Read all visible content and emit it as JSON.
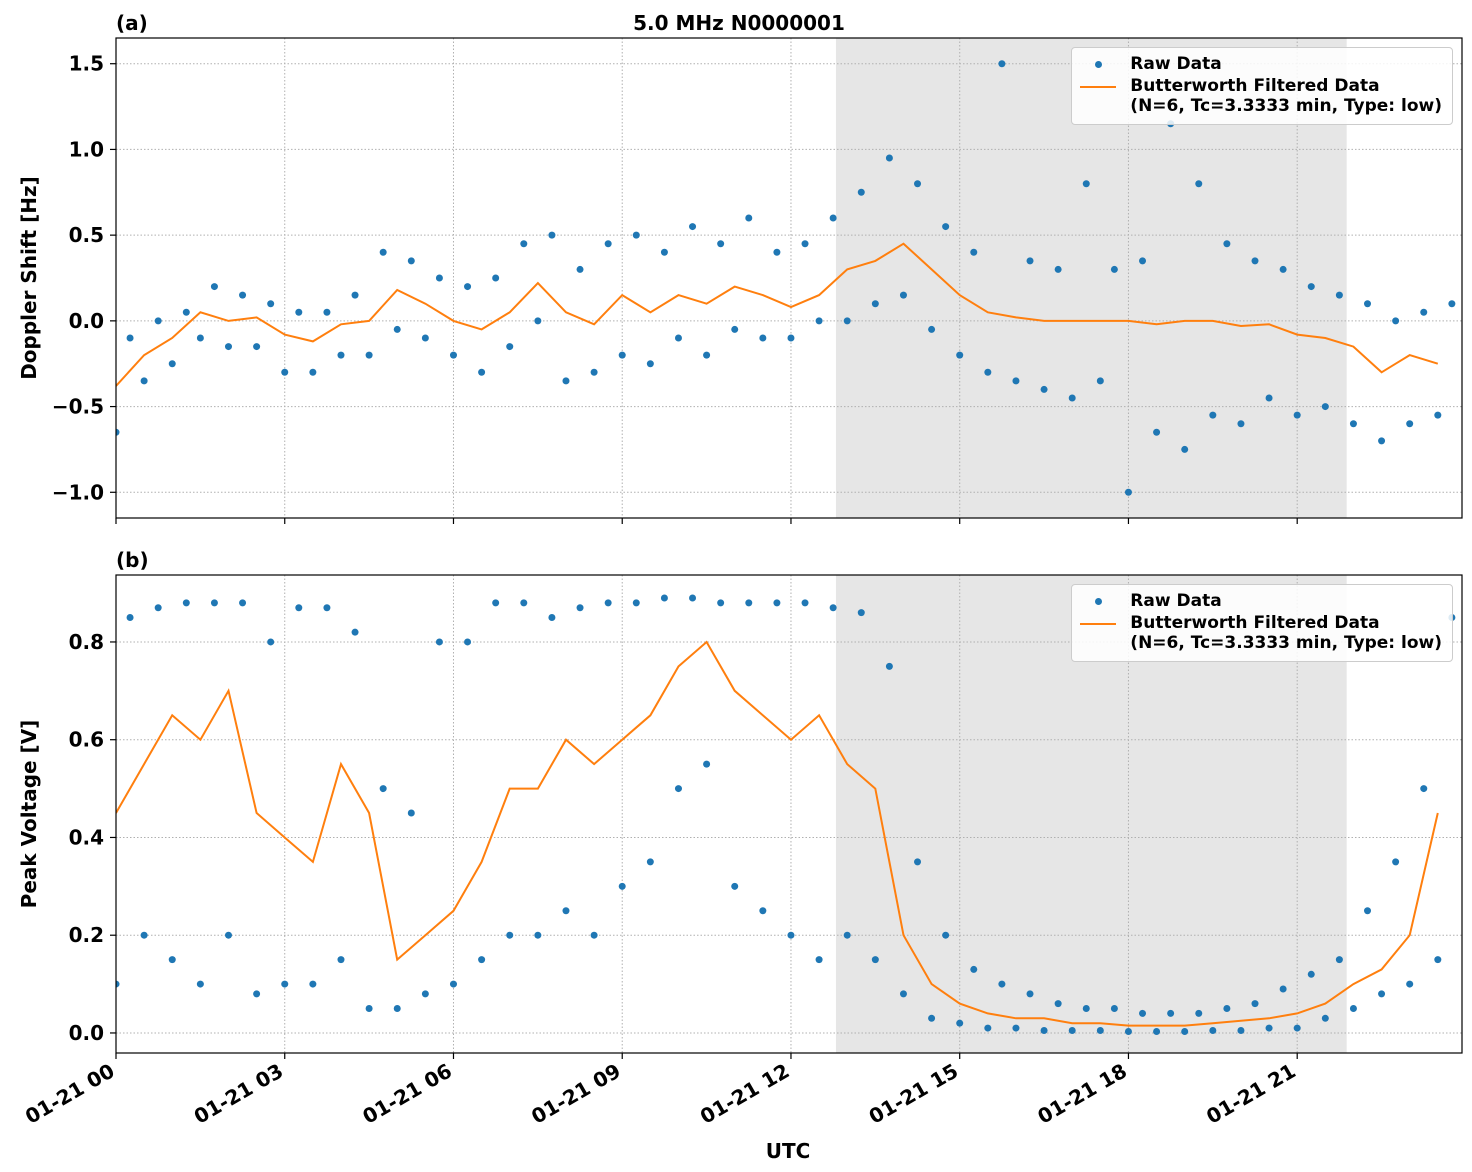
{
  "chart_data": [
    {
      "type": "line",
      "title": "5.0 MHz N0000001",
      "panel_label": "(a)",
      "ylabel": "Doppler Shift [Hz]",
      "xlim": [
        0,
        23.93
      ],
      "ylim": [
        -1.15,
        1.65
      ],
      "xticks": [
        0,
        3,
        6,
        9,
        12,
        15,
        18,
        21
      ],
      "xtick_labels_shown": false,
      "yticks": [
        {
          "value": -1.0,
          "label": "−1.0"
        },
        {
          "value": -0.5,
          "label": "−0.5"
        },
        {
          "value": 0.0,
          "label": "0.0"
        },
        {
          "value": 0.5,
          "label": "0.5"
        },
        {
          "value": 1.0,
          "label": "1.0"
        },
        {
          "value": 1.5,
          "label": "1.5"
        }
      ],
      "grid": true,
      "legend": "upper right",
      "shaded_span": [
        12.8,
        21.88
      ],
      "shade_color": "#e6e6e6",
      "series": [
        {
          "name": "Raw Data",
          "color": "#1f77b4",
          "style": "markers",
          "x": [
            0,
            0.25,
            0.5,
            0.75,
            1,
            1.25,
            1.5,
            1.75,
            2,
            2.25,
            2.5,
            2.75,
            3,
            3.25,
            3.5,
            3.75,
            4,
            4.25,
            4.5,
            4.75,
            5,
            5.25,
            5.5,
            5.75,
            6,
            6.25,
            6.5,
            6.75,
            7,
            7.25,
            7.5,
            7.75,
            8,
            8.25,
            8.5,
            8.75,
            9,
            9.25,
            9.5,
            9.75,
            10,
            10.25,
            10.5,
            10.75,
            11,
            11.25,
            11.5,
            11.75,
            12,
            12.25,
            12.5,
            12.75,
            13,
            13.25,
            13.5,
            13.75,
            14,
            14.25,
            14.5,
            14.75,
            15,
            15.25,
            15.5,
            15.75,
            16,
            16.25,
            16.5,
            16.75,
            17,
            17.25,
            17.5,
            17.75,
            18,
            18.25,
            18.5,
            18.75,
            19,
            19.25,
            19.5,
            19.75,
            20,
            20.25,
            20.5,
            20.75,
            21,
            21.25,
            21.5,
            21.75,
            22,
            22.25,
            22.5,
            22.75,
            23,
            23.25,
            23.5,
            23.75
          ],
          "values": [
            -0.65,
            -0.1,
            -0.35,
            0.0,
            -0.25,
            0.05,
            -0.1,
            0.2,
            -0.15,
            0.15,
            -0.15,
            0.1,
            -0.3,
            0.05,
            -0.3,
            0.05,
            -0.2,
            0.15,
            -0.2,
            0.4,
            -0.05,
            0.35,
            -0.1,
            0.25,
            -0.2,
            0.2,
            -0.3,
            0.25,
            -0.15,
            0.45,
            0.0,
            0.5,
            -0.35,
            0.3,
            -0.3,
            0.45,
            -0.2,
            0.5,
            -0.25,
            0.4,
            -0.1,
            0.55,
            -0.2,
            0.45,
            -0.05,
            0.6,
            -0.1,
            0.4,
            -0.1,
            0.45,
            0.0,
            0.6,
            0.0,
            0.75,
            0.1,
            0.95,
            0.15,
            0.8,
            -0.05,
            0.55,
            -0.2,
            0.4,
            -0.3,
            1.5,
            -0.35,
            0.35,
            -0.4,
            0.3,
            -0.45,
            0.8,
            -0.35,
            0.3,
            -1.0,
            0.35,
            -0.65,
            1.15,
            -0.75,
            0.8,
            -0.55,
            0.45,
            -0.6,
            0.35,
            -0.45,
            0.3,
            -0.55,
            0.2,
            -0.5,
            0.15,
            -0.6,
            0.1,
            -0.7,
            0.0,
            -0.6,
            0.05,
            -0.55,
            0.1
          ]
        },
        {
          "name": "Butterworth Filtered Data\n(N=6, Tc=3.3333 min, Type: low)",
          "color": "#ff7f0e",
          "style": "line",
          "x": [
            0,
            0.5,
            1,
            1.5,
            2,
            2.5,
            3,
            3.5,
            4,
            4.5,
            5,
            5.5,
            6,
            6.5,
            7,
            7.5,
            8,
            8.5,
            9,
            9.5,
            10,
            10.5,
            11,
            11.5,
            12,
            12.5,
            13,
            13.5,
            14,
            14.5,
            15,
            15.5,
            16,
            16.5,
            17,
            17.5,
            18,
            18.5,
            19,
            19.5,
            20,
            20.5,
            21,
            21.5,
            22,
            22.5,
            23,
            23.5
          ],
          "values": [
            -0.38,
            -0.2,
            -0.1,
            0.05,
            0.0,
            0.02,
            -0.08,
            -0.12,
            -0.02,
            0.0,
            0.18,
            0.1,
            0.0,
            -0.05,
            0.05,
            0.22,
            0.05,
            -0.02,
            0.15,
            0.05,
            0.15,
            0.1,
            0.2,
            0.15,
            0.08,
            0.15,
            0.3,
            0.35,
            0.45,
            0.3,
            0.15,
            0.05,
            0.02,
            0.0,
            0.0,
            0.0,
            0.0,
            -0.02,
            0.0,
            0.0,
            -0.03,
            -0.02,
            -0.08,
            -0.1,
            -0.15,
            -0.3,
            -0.2,
            -0.25
          ]
        }
      ]
    },
    {
      "type": "line",
      "panel_label": "(b)",
      "ylabel": "Peak Voltage [V]",
      "xlabel": "UTC",
      "xlim": [
        0,
        23.93
      ],
      "ylim": [
        -0.041,
        0.937
      ],
      "xticks": [
        {
          "value": 0,
          "label": "01-21 00"
        },
        {
          "value": 3,
          "label": "01-21 03"
        },
        {
          "value": 6,
          "label": "01-21 06"
        },
        {
          "value": 9,
          "label": "01-21 09"
        },
        {
          "value": 12,
          "label": "01-21 12"
        },
        {
          "value": 15,
          "label": "01-21 15"
        },
        {
          "value": 18,
          "label": "01-21 18"
        },
        {
          "value": 21,
          "label": "01-21 21"
        }
      ],
      "xtick_labels_shown": true,
      "yticks": [
        {
          "value": 0.0,
          "label": "0.0"
        },
        {
          "value": 0.2,
          "label": "0.2"
        },
        {
          "value": 0.4,
          "label": "0.4"
        },
        {
          "value": 0.6,
          "label": "0.6"
        },
        {
          "value": 0.8,
          "label": "0.8"
        }
      ],
      "grid": true,
      "legend": "upper right",
      "shaded_span": [
        12.8,
        21.88
      ],
      "shade_color": "#e6e6e6",
      "series": [
        {
          "name": "Raw Data",
          "color": "#1f77b4",
          "style": "markers",
          "x": [
            0,
            0.25,
            0.5,
            0.75,
            1,
            1.25,
            1.5,
            1.75,
            2,
            2.25,
            2.5,
            2.75,
            3,
            3.25,
            3.5,
            3.75,
            4,
            4.25,
            4.5,
            4.75,
            5,
            5.25,
            5.5,
            5.75,
            6,
            6.25,
            6.5,
            6.75,
            7,
            7.25,
            7.5,
            7.75,
            8,
            8.25,
            8.5,
            8.75,
            9,
            9.25,
            9.5,
            9.75,
            10,
            10.25,
            10.5,
            10.75,
            11,
            11.25,
            11.5,
            11.75,
            12,
            12.25,
            12.5,
            12.75,
            13,
            13.25,
            13.5,
            13.75,
            14,
            14.25,
            14.5,
            14.75,
            15,
            15.25,
            15.5,
            15.75,
            16,
            16.25,
            16.5,
            16.75,
            17,
            17.25,
            17.5,
            17.75,
            18,
            18.25,
            18.5,
            18.75,
            19,
            19.25,
            19.5,
            19.75,
            20,
            20.25,
            20.5,
            20.75,
            21,
            21.25,
            21.5,
            21.75,
            22,
            22.25,
            22.5,
            22.75,
            23,
            23.25,
            23.5,
            23.75
          ],
          "values": [
            0.1,
            0.85,
            0.2,
            0.87,
            0.15,
            0.88,
            0.1,
            0.88,
            0.2,
            0.88,
            0.08,
            0.8,
            0.1,
            0.87,
            0.1,
            0.87,
            0.15,
            0.82,
            0.05,
            0.5,
            0.05,
            0.45,
            0.08,
            0.8,
            0.1,
            0.8,
            0.15,
            0.88,
            0.2,
            0.88,
            0.2,
            0.85,
            0.25,
            0.87,
            0.2,
            0.88,
            0.3,
            0.88,
            0.35,
            0.89,
            0.5,
            0.89,
            0.55,
            0.88,
            0.3,
            0.88,
            0.25,
            0.88,
            0.2,
            0.88,
            0.15,
            0.87,
            0.2,
            0.86,
            0.15,
            0.75,
            0.08,
            0.35,
            0.03,
            0.2,
            0.02,
            0.13,
            0.01,
            0.1,
            0.01,
            0.08,
            0.005,
            0.06,
            0.005,
            0.05,
            0.005,
            0.05,
            0.003,
            0.04,
            0.003,
            0.04,
            0.003,
            0.04,
            0.005,
            0.05,
            0.005,
            0.06,
            0.01,
            0.09,
            0.01,
            0.12,
            0.03,
            0.15,
            0.05,
            0.25,
            0.08,
            0.35,
            0.1,
            0.5,
            0.15,
            0.85
          ]
        },
        {
          "name": "Butterworth Filtered Data\n(N=6, Tc=3.3333 min, Type: low)",
          "color": "#ff7f0e",
          "style": "line",
          "x": [
            0,
            0.5,
            1,
            1.5,
            2,
            2.5,
            3,
            3.5,
            4,
            4.5,
            5,
            5.5,
            6,
            6.5,
            7,
            7.5,
            8,
            8.5,
            9,
            9.5,
            10,
            10.5,
            11,
            11.5,
            12,
            12.5,
            13,
            13.5,
            14,
            14.5,
            15,
            15.5,
            16,
            16.5,
            17,
            17.5,
            18,
            18.5,
            19,
            19.5,
            20,
            20.5,
            21,
            21.5,
            22,
            22.5,
            23,
            23.5
          ],
          "values": [
            0.45,
            0.55,
            0.65,
            0.6,
            0.7,
            0.45,
            0.4,
            0.35,
            0.55,
            0.45,
            0.15,
            0.2,
            0.25,
            0.35,
            0.5,
            0.5,
            0.6,
            0.55,
            0.6,
            0.65,
            0.75,
            0.8,
            0.7,
            0.65,
            0.6,
            0.65,
            0.55,
            0.5,
            0.2,
            0.1,
            0.06,
            0.04,
            0.03,
            0.03,
            0.02,
            0.02,
            0.015,
            0.015,
            0.015,
            0.02,
            0.025,
            0.03,
            0.04,
            0.06,
            0.1,
            0.13,
            0.2,
            0.45
          ]
        }
      ]
    }
  ]
}
